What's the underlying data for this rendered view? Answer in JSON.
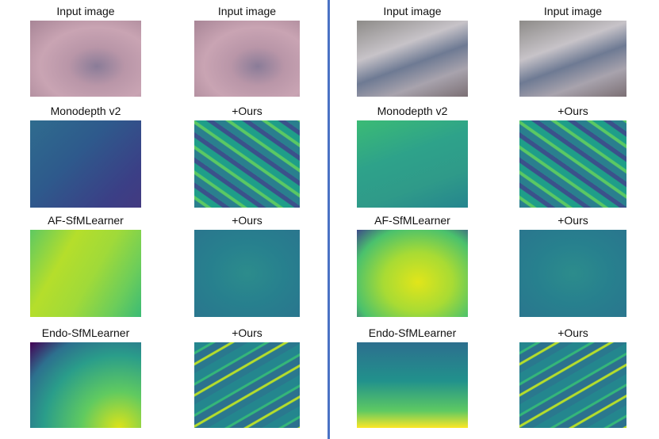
{
  "panels": [
    {
      "rows": [
        [
          "Input image",
          "Input image"
        ],
        [
          "Monodepth v2",
          "+Ours"
        ],
        [
          "AF-SfMLearner",
          "+Ours"
        ],
        [
          "Endo-SfMLearner",
          "+Ours"
        ]
      ]
    },
    {
      "rows": [
        [
          "Input image",
          "Input image"
        ],
        [
          "Monodepth v2",
          "+Ours"
        ],
        [
          "AF-SfMLearner",
          "+Ours"
        ],
        [
          "Endo-SfMLearner",
          "+Ours"
        ]
      ]
    }
  ]
}
